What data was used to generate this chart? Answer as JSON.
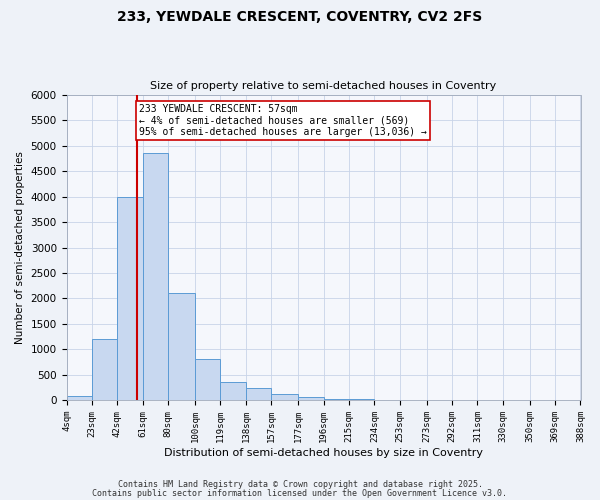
{
  "title": "233, YEWDALE CRESCENT, COVENTRY, CV2 2FS",
  "subtitle": "Size of property relative to semi-detached houses in Coventry",
  "xlabel": "Distribution of semi-detached houses by size in Coventry",
  "ylabel": "Number of semi-detached properties",
  "bar_edges": [
    4,
    23,
    42,
    61,
    80,
    100,
    119,
    138,
    157,
    177,
    196,
    215,
    234,
    253,
    273,
    292,
    311,
    330,
    350,
    369,
    388
  ],
  "bar_heights": [
    75,
    1200,
    4000,
    4850,
    2100,
    800,
    360,
    240,
    110,
    50,
    20,
    10,
    5,
    2,
    1,
    0,
    0,
    0,
    0,
    0
  ],
  "bar_color": "#c8d8f0",
  "bar_edgecolor": "#5b9bd5",
  "vline_x": 57,
  "vline_color": "#cc0000",
  "annotation_text": "233 YEWDALE CRESCENT: 57sqm\n← 4% of semi-detached houses are smaller (569)\n95% of semi-detached houses are larger (13,036) →",
  "annotation_box_edgecolor": "#cc0000",
  "annotation_box_facecolor": "#ffffff",
  "tick_labels": [
    "4sqm",
    "23sqm",
    "42sqm",
    "61sqm",
    "80sqm",
    "100sqm",
    "119sqm",
    "138sqm",
    "157sqm",
    "177sqm",
    "196sqm",
    "215sqm",
    "234sqm",
    "253sqm",
    "273sqm",
    "292sqm",
    "311sqm",
    "330sqm",
    "350sqm",
    "369sqm",
    "388sqm"
  ],
  "ylim": [
    0,
    6000
  ],
  "yticks": [
    0,
    500,
    1000,
    1500,
    2000,
    2500,
    3000,
    3500,
    4000,
    4500,
    5000,
    5500,
    6000
  ],
  "footer1": "Contains HM Land Registry data © Crown copyright and database right 2025.",
  "footer2": "Contains public sector information licensed under the Open Government Licence v3.0.",
  "bg_color": "#eef2f8",
  "plot_bg_color": "#f5f7fc",
  "grid_color": "#c8d4e8"
}
